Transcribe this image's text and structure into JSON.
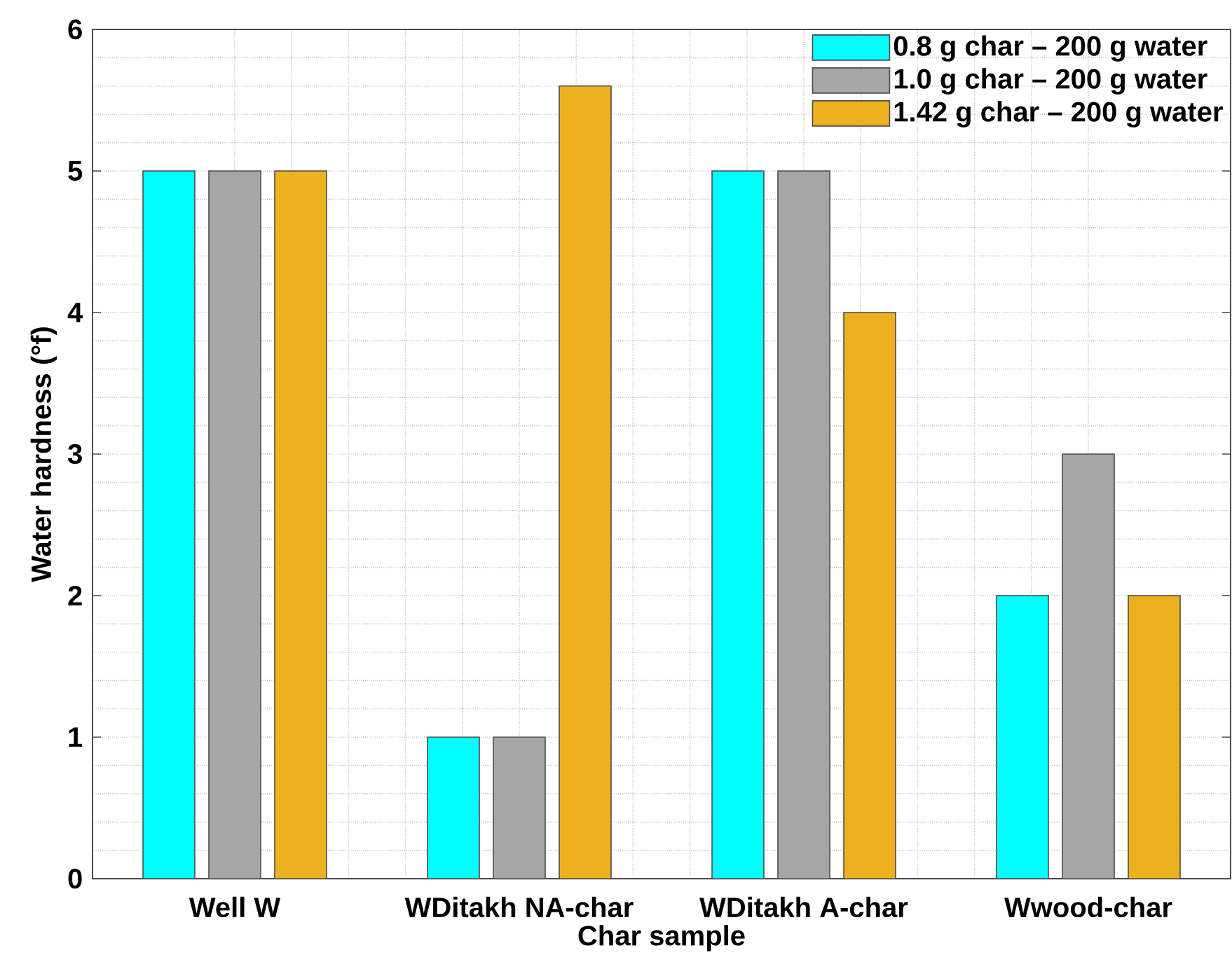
{
  "chart_data": {
    "type": "bar",
    "xlabel": "Char sample",
    "ylabel": "Water hardness (°f)",
    "categories": [
      "Well W",
      "WDitakh NA-char",
      "WDitakh A-char",
      "Wwood-char"
    ],
    "series": [
      {
        "name": "0.8 g char – 200 g water",
        "color": "#00ffff",
        "values": [
          5,
          1,
          5,
          2
        ]
      },
      {
        "name": "1.0 g char – 200 g water",
        "color": "#a6a6a6",
        "values": [
          5,
          1,
          5,
          3
        ]
      },
      {
        "name": "1.42 g char – 200 g water",
        "color": "#edb120",
        "values": [
          5,
          5.6,
          4,
          2
        ]
      }
    ],
    "ylim": [
      0,
      6
    ],
    "yticks": [
      0,
      1,
      2,
      3,
      4,
      5,
      6
    ],
    "grid": true,
    "legend": "top right"
  }
}
